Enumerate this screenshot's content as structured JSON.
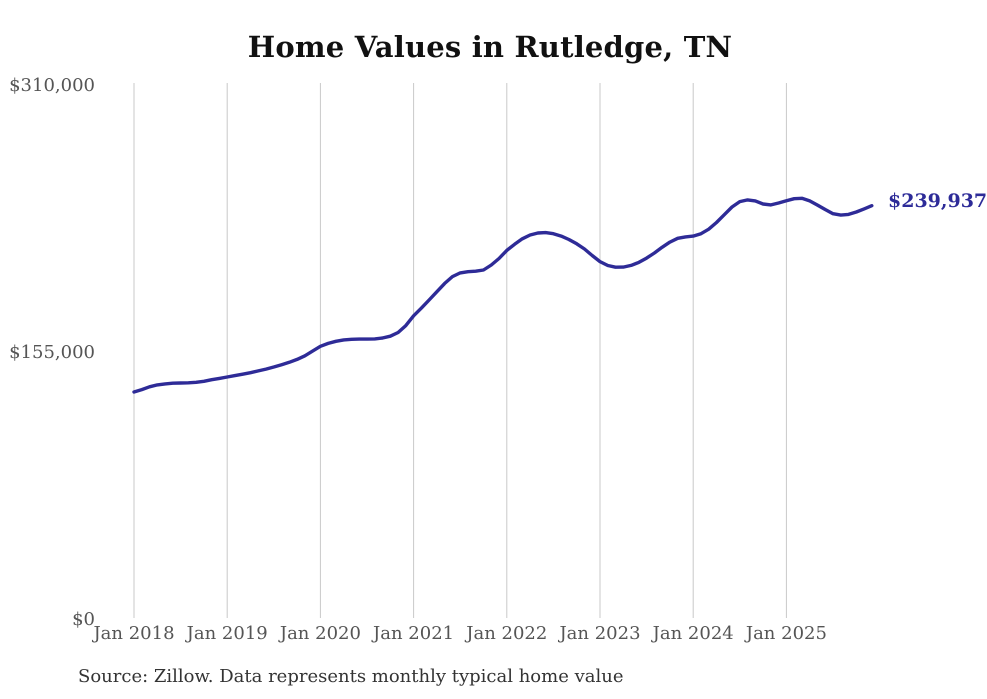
{
  "chart_data": {
    "type": "line",
    "title": "Home Values in Rutledge, TN",
    "end_label": "$239,937",
    "latest_value": 239937,
    "source_note": "Source: Zillow. Data represents monthly typical home value",
    "ylim": [
      0,
      310000
    ],
    "grid": "vertical-only",
    "legend": "none",
    "y_ticks": [
      {
        "label": "$310,000",
        "value": 310000
      },
      {
        "label": "$155,000",
        "value": 155000
      },
      {
        "label": "$0",
        "value": 0
      }
    ],
    "x_ticks": [
      {
        "label": "Jan 2018",
        "month_index": 0
      },
      {
        "label": "Jan 2019",
        "month_index": 12
      },
      {
        "label": "Jan 2020",
        "month_index": 24
      },
      {
        "label": "Jan 2021",
        "month_index": 36
      },
      {
        "label": "Jan 2022",
        "month_index": 48
      },
      {
        "label": "Jan 2023",
        "month_index": 60
      },
      {
        "label": "Jan 2024",
        "month_index": 72
      },
      {
        "label": "Jan 2025",
        "month_index": 84
      }
    ],
    "series": [
      {
        "name": "Monthly typical home value",
        "start_month": "2018-01",
        "end_month": "2025-12",
        "values": [
          131800,
          133200,
          134800,
          135900,
          136500,
          136900,
          137000,
          137100,
          137400,
          138000,
          138900,
          139700,
          140500,
          141300,
          142100,
          143000,
          144000,
          145100,
          146300,
          147600,
          149000,
          150700,
          152800,
          155500,
          158300,
          160000,
          161200,
          162000,
          162400,
          162500,
          162500,
          162600,
          163100,
          164200,
          166300,
          170300,
          176000,
          180500,
          185200,
          190000,
          194800,
          198800,
          200900,
          201600,
          201900,
          202600,
          205500,
          209300,
          214000,
          217500,
          220700,
          222900,
          224100,
          224300,
          223700,
          222300,
          220300,
          217800,
          214800,
          211000,
          207500,
          205200,
          204200,
          204300,
          205300,
          207000,
          209500,
          212500,
          215800,
          218800,
          221000,
          221800,
          222300,
          223700,
          226300,
          230200,
          234700,
          239200,
          242300,
          243300,
          242700,
          240900,
          240400,
          241500,
          242800,
          244000,
          244200,
          242700,
          240300,
          237700,
          235300,
          234500,
          234900,
          236300,
          238100,
          239937
        ]
      }
    ],
    "colors": {
      "line": "#2e2b97",
      "grid": "#c9c9c9",
      "axis_text": "#555555",
      "title_text": "#111111",
      "source_text": "#333333",
      "end_label_text": "#2d2b98",
      "background": "#ffffff"
    }
  }
}
